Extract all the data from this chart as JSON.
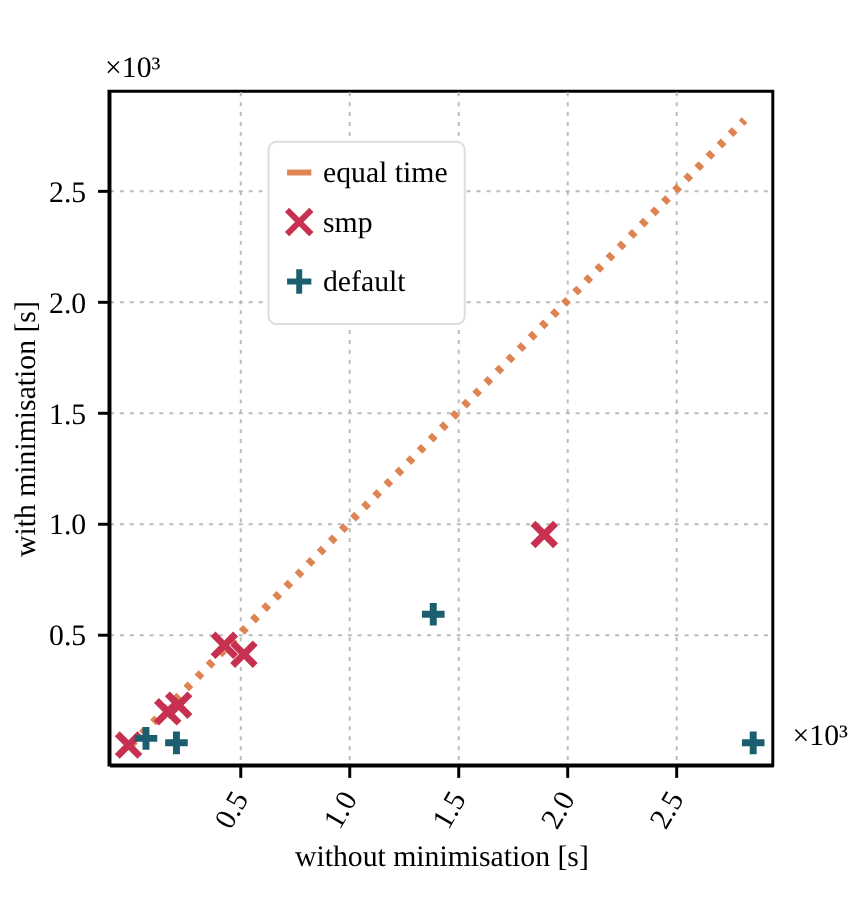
{
  "chart_data": {
    "type": "scatter",
    "xlabel": "without minimisation [s]",
    "ylabel": "with minimisation [s]",
    "annotations": [
      "×10³",
      "×10³"
    ],
    "xlim": [
      -0.1,
      2.95
    ],
    "ylim": [
      -0.09,
      2.95
    ],
    "xticks": [
      0.5,
      {
        "value": 1,
        "label": "1.0"
      },
      1.5,
      {
        "value": 2,
        "label": "2.0"
      },
      2.5
    ],
    "yticks": [
      0.5,
      {
        "value": 1,
        "label": "1.0"
      },
      1.5,
      {
        "value": 2,
        "label": "2.0"
      },
      2.5
    ],
    "grid": true,
    "legend": "top",
    "series": [
      {
        "name": "equal time",
        "type": "line",
        "line_style": "dotted",
        "color": "#dd8452",
        "x": [
          0.0,
          2.82
        ],
        "values": [
          0.0,
          2.82
        ]
      },
      {
        "name": "smp",
        "marker": "x",
        "color": "#c73050",
        "x": [
          -0.01,
          0.17,
          0.22,
          0.43,
          0.52,
          1.9
        ],
        "values": [
          0.0,
          0.15,
          0.18,
          0.45,
          0.41,
          0.95
        ]
      },
      {
        "name": "default",
        "marker": "plus",
        "color": "#1b5f6f",
        "x": [
          0.07,
          0.21,
          1.39,
          2.86
        ],
        "values": [
          0.03,
          0.01,
          0.59,
          0.01
        ]
      }
    ]
  }
}
